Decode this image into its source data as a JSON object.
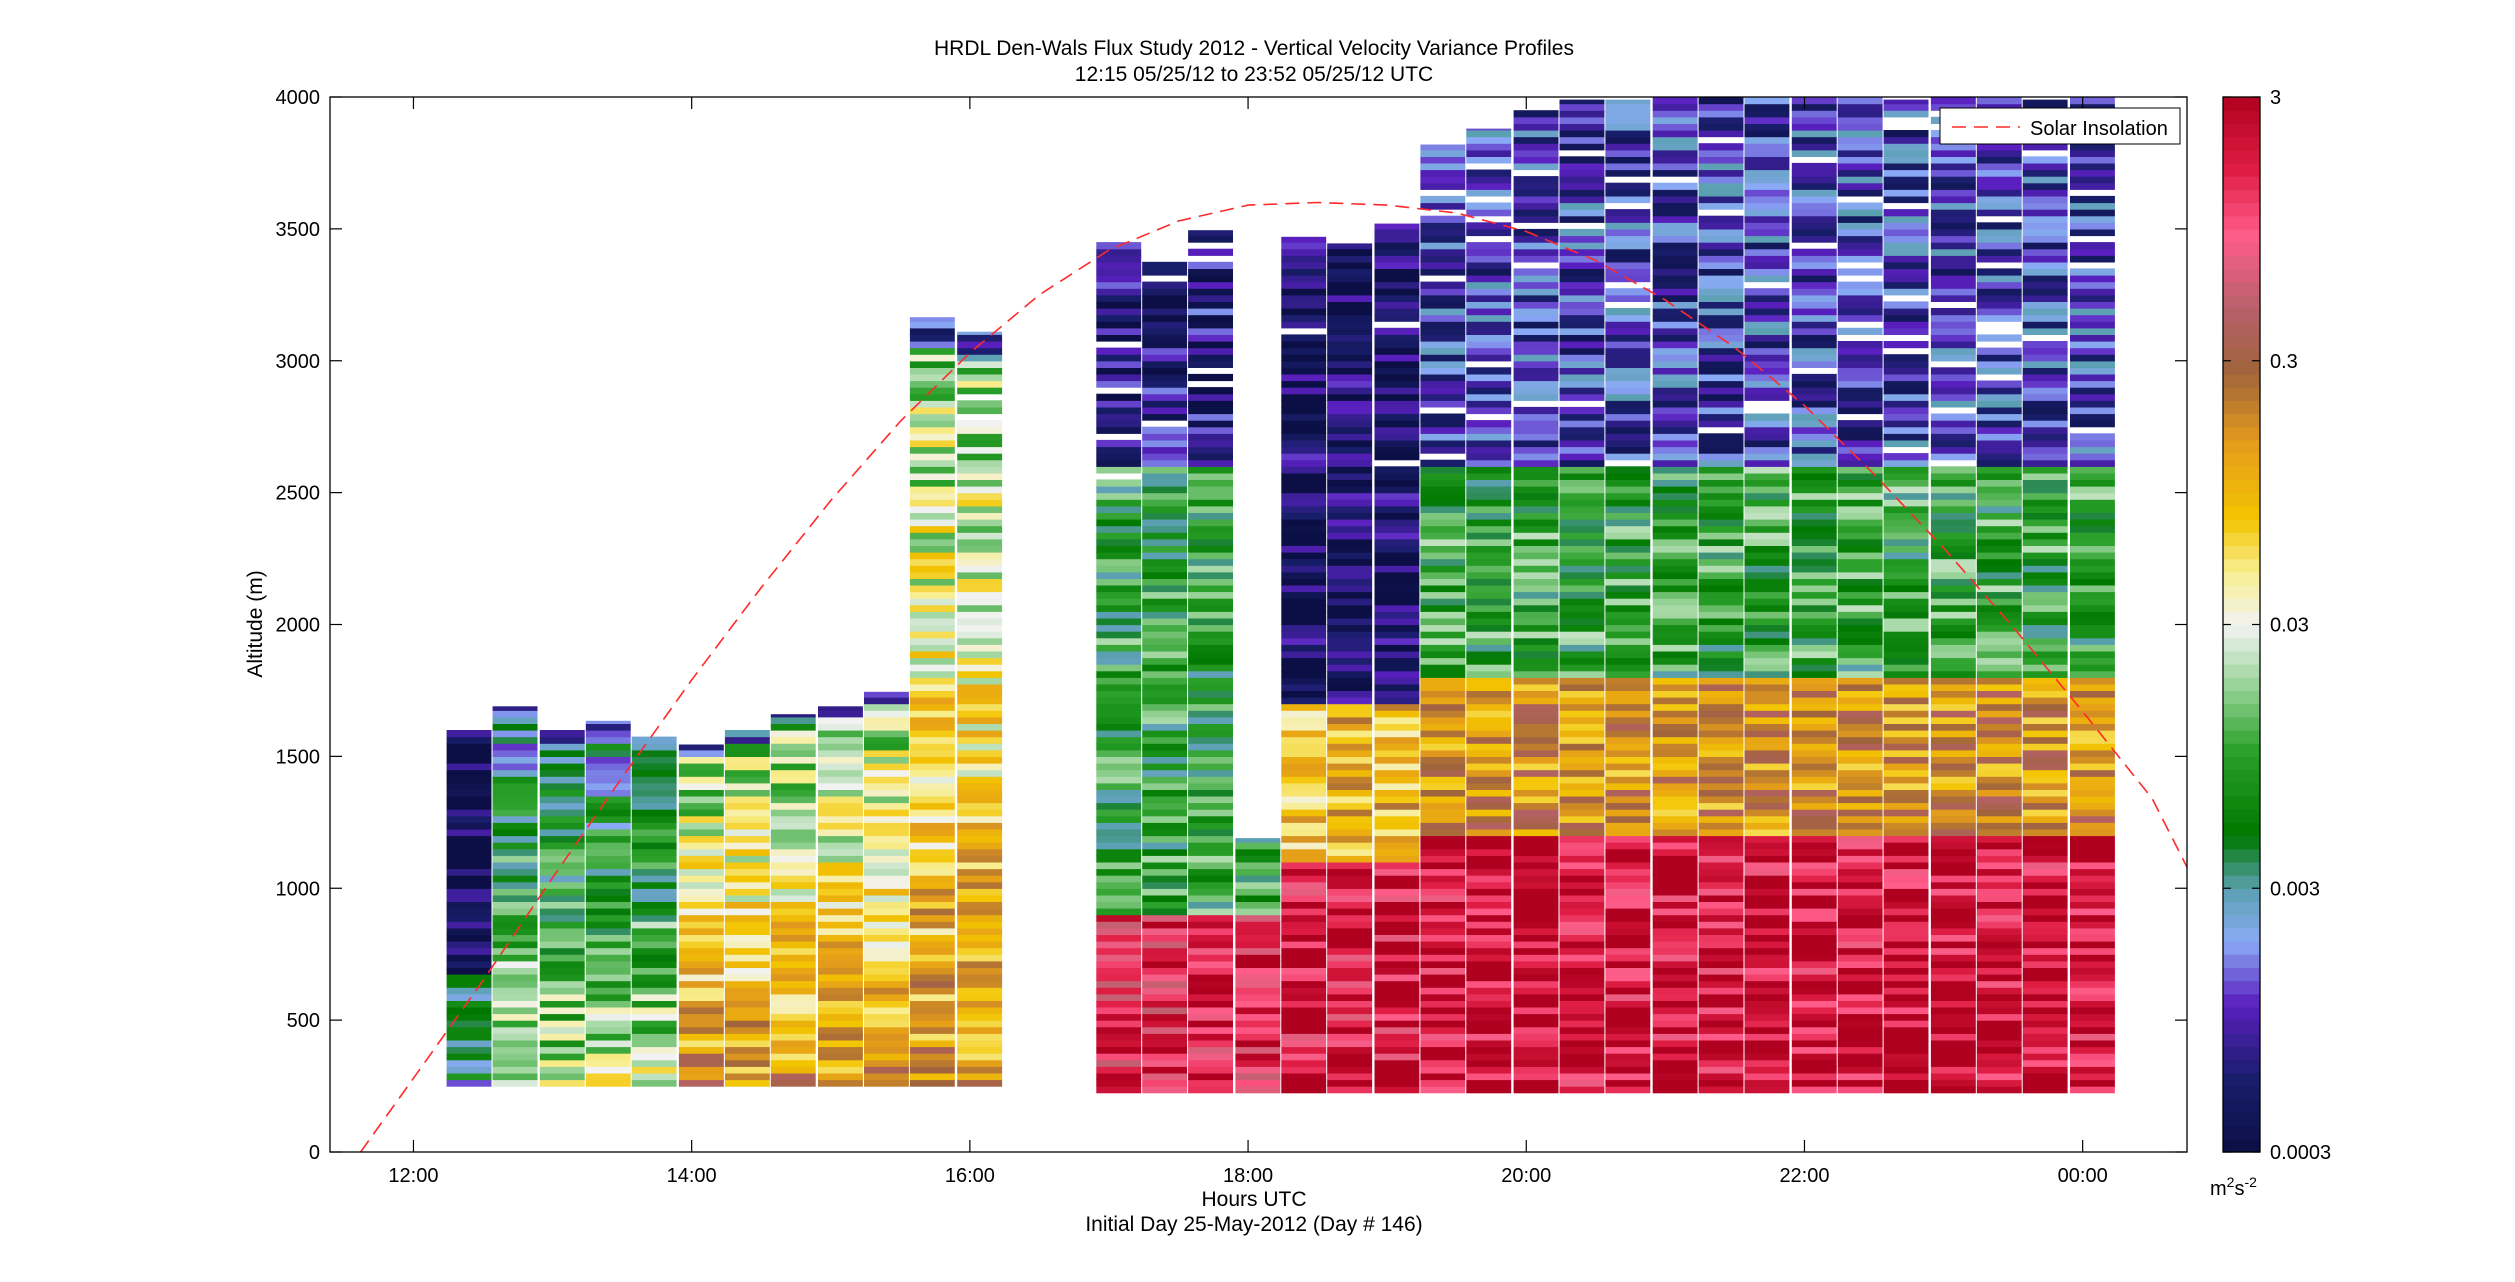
{
  "chart_data": {
    "type": "heatmap",
    "title": "HRDL Den-Wals Flux Study 2012 - Vertical Velocity Variance Profiles",
    "subtitle": "12:15 05/25/12 to 23:52 05/25/12  UTC",
    "xlabel": "Hours UTC",
    "xlabel2": "Initial Day 25-May-2012 (Day # 146)",
    "ylabel": "Altitude (m)",
    "xlim": [
      11.4,
      24.75
    ],
    "ylim": [
      0,
      4000
    ],
    "x_ticks": [
      12,
      14,
      16,
      18,
      20,
      22,
      24
    ],
    "x_tick_labels": [
      "12:00",
      "14:00",
      "16:00",
      "18:00",
      "20:00",
      "22:00",
      "00:00"
    ],
    "y_ticks": [
      0,
      500,
      1000,
      1500,
      2000,
      2500,
      3000,
      3500,
      4000
    ],
    "y_tick_labels": [
      "0",
      "500",
      "1000",
      "1500",
      "2000",
      "2500",
      "3000",
      "3500",
      "4000"
    ],
    "colorbar": {
      "scale": "log",
      "range": [
        0.0003,
        3
      ],
      "tick_values": [
        0.0003,
        0.003,
        0.03,
        0.3,
        3
      ],
      "tick_labels": [
        "0.0003",
        "0.003",
        "0.03",
        "0.3",
        "3"
      ],
      "unit_base": "m",
      "unit_sup1": "2",
      "unit_mid": "s",
      "unit_sup2": "-2"
    },
    "legend": {
      "entries": [
        "Solar Insolation"
      ],
      "placement": "top-right"
    },
    "profiles": [
      {
        "time": 12.4,
        "bottom": 250,
        "top": 1600
      },
      {
        "time": 12.73,
        "bottom": 250,
        "top": 1690
      },
      {
        "time": 13.07,
        "bottom": 250,
        "top": 1600
      },
      {
        "time": 13.4,
        "bottom": 250,
        "top": 1635
      },
      {
        "time": 13.73,
        "bottom": 250,
        "top": 1575
      },
      {
        "time": 14.07,
        "bottom": 250,
        "top": 1545
      },
      {
        "time": 14.4,
        "bottom": 250,
        "top": 1600
      },
      {
        "time": 14.73,
        "bottom": 250,
        "top": 1660
      },
      {
        "time": 15.07,
        "bottom": 250,
        "top": 1690
      },
      {
        "time": 15.4,
        "bottom": 250,
        "top": 1745
      },
      {
        "time": 15.73,
        "bottom": 250,
        "top": 3165
      },
      {
        "time": 16.07,
        "bottom": 250,
        "top": 3110
      },
      {
        "time": 17.07,
        "bottom": 225,
        "top": 3450
      },
      {
        "time": 17.4,
        "bottom": 225,
        "top": 3400
      },
      {
        "time": 17.73,
        "bottom": 225,
        "top": 3495
      },
      {
        "time": 18.07,
        "bottom": 225,
        "top": 1190
      },
      {
        "time": 18.4,
        "bottom": 225,
        "top": 3470
      },
      {
        "time": 18.73,
        "bottom": 225,
        "top": 3445
      },
      {
        "time": 19.07,
        "bottom": 225,
        "top": 3520
      },
      {
        "time": 19.4,
        "bottom": 225,
        "top": 3820
      },
      {
        "time": 19.73,
        "bottom": 225,
        "top": 3880
      },
      {
        "time": 20.07,
        "bottom": 225,
        "top": 3950
      },
      {
        "time": 20.4,
        "bottom": 225,
        "top": 3990
      },
      {
        "time": 20.73,
        "bottom": 225,
        "top": 3990
      },
      {
        "time": 21.07,
        "bottom": 225,
        "top": 4000
      },
      {
        "time": 21.4,
        "bottom": 225,
        "top": 4000
      },
      {
        "time": 21.73,
        "bottom": 225,
        "top": 4000
      },
      {
        "time": 22.07,
        "bottom": 225,
        "top": 4000
      },
      {
        "time": 22.4,
        "bottom": 225,
        "top": 4000
      },
      {
        "time": 22.73,
        "bottom": 225,
        "top": 3990
      },
      {
        "time": 23.07,
        "bottom": 225,
        "top": 4000
      },
      {
        "time": 23.4,
        "bottom": 225,
        "top": 4000
      },
      {
        "time": 23.73,
        "bottom": 225,
        "top": 3990
      },
      {
        "time": 24.07,
        "bottom": 225,
        "top": 4000
      }
    ],
    "solar_insolation_curve": {
      "style": "red dashed",
      "x": [
        11.62,
        12.0,
        12.5,
        13.0,
        13.5,
        14.0,
        14.5,
        15.0,
        15.5,
        16.0,
        16.5,
        17.0,
        17.5,
        18.0,
        18.5,
        19.0,
        19.5,
        20.0,
        20.5,
        21.0,
        21.5,
        22.0,
        22.5,
        23.0,
        23.5,
        24.0,
        24.5,
        24.75
      ],
      "y": [
        0,
        280,
        650,
        1040,
        1420,
        1790,
        2140,
        2470,
        2770,
        3030,
        3250,
        3420,
        3530,
        3590,
        3600,
        3590,
        3560,
        3490,
        3380,
        3230,
        3050,
        2830,
        2570,
        2290,
        1990,
        1670,
        1340,
        1080
      ]
    }
  }
}
